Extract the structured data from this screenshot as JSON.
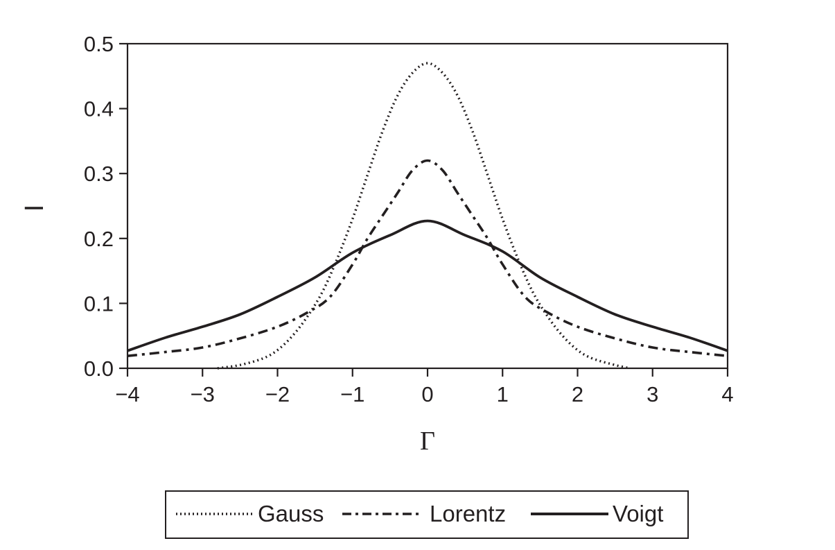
{
  "chart_data": {
    "type": "line",
    "title": "",
    "xlabel": "Γ",
    "ylabel": "I",
    "xlim": [
      -4,
      4
    ],
    "ylim": [
      0,
      0.5
    ],
    "x_ticks": [
      "−4",
      "−3",
      "−2",
      "−1",
      "0",
      "1",
      "2",
      "3",
      "4"
    ],
    "y_ticks": [
      "0.0",
      "0.1",
      "0.2",
      "0.3",
      "0.4",
      "0.5"
    ],
    "grid": false,
    "legend_position": "bottom",
    "series": [
      {
        "name": "Gauss",
        "style": "dotted",
        "color": "#231f20",
        "x": [
          -2.8,
          -2.5,
          -2.2,
          -2.0,
          -1.8,
          -1.6,
          -1.4,
          -1.2,
          -1.0,
          -0.8,
          -0.6,
          -0.4,
          -0.2,
          0.0,
          0.2,
          0.4,
          0.6,
          0.8,
          1.0,
          1.2,
          1.4,
          1.6,
          1.8,
          2.0,
          2.2,
          2.5,
          2.7
        ],
        "y": [
          0.0,
          0.005,
          0.015,
          0.028,
          0.05,
          0.08,
          0.118,
          0.17,
          0.23,
          0.298,
          0.365,
          0.42,
          0.455,
          0.47,
          0.455,
          0.42,
          0.365,
          0.298,
          0.23,
          0.17,
          0.118,
          0.08,
          0.05,
          0.028,
          0.015,
          0.005,
          0.0
        ]
      },
      {
        "name": "Lorentz",
        "style": "dash-dot",
        "color": "#231f20",
        "x": [
          -4.0,
          -3.5,
          -3.0,
          -2.5,
          -2.0,
          -1.6,
          -1.3,
          -1.0,
          -0.8,
          -0.6,
          -0.4,
          -0.2,
          0.0,
          0.2,
          0.4,
          0.6,
          0.8,
          1.0,
          1.3,
          1.6,
          2.0,
          2.5,
          3.0,
          3.5,
          4.0
        ],
        "y": [
          0.019,
          0.025,
          0.032,
          0.046,
          0.064,
          0.086,
          0.11,
          0.16,
          0.2,
          0.235,
          0.27,
          0.305,
          0.32,
          0.305,
          0.27,
          0.235,
          0.2,
          0.16,
          0.11,
          0.086,
          0.064,
          0.046,
          0.032,
          0.025,
          0.019
        ]
      },
      {
        "name": "Voigt",
        "style": "solid",
        "color": "#231f20",
        "x": [
          -4.0,
          -3.5,
          -3.0,
          -2.5,
          -2.0,
          -1.5,
          -1.0,
          -0.5,
          0.0,
          0.5,
          1.0,
          1.5,
          2.0,
          2.5,
          3.0,
          3.5,
          4.0
        ],
        "y": [
          0.027,
          0.047,
          0.064,
          0.083,
          0.11,
          0.14,
          0.178,
          0.205,
          0.227,
          0.205,
          0.18,
          0.14,
          0.11,
          0.083,
          0.064,
          0.047,
          0.027
        ]
      }
    ]
  }
}
